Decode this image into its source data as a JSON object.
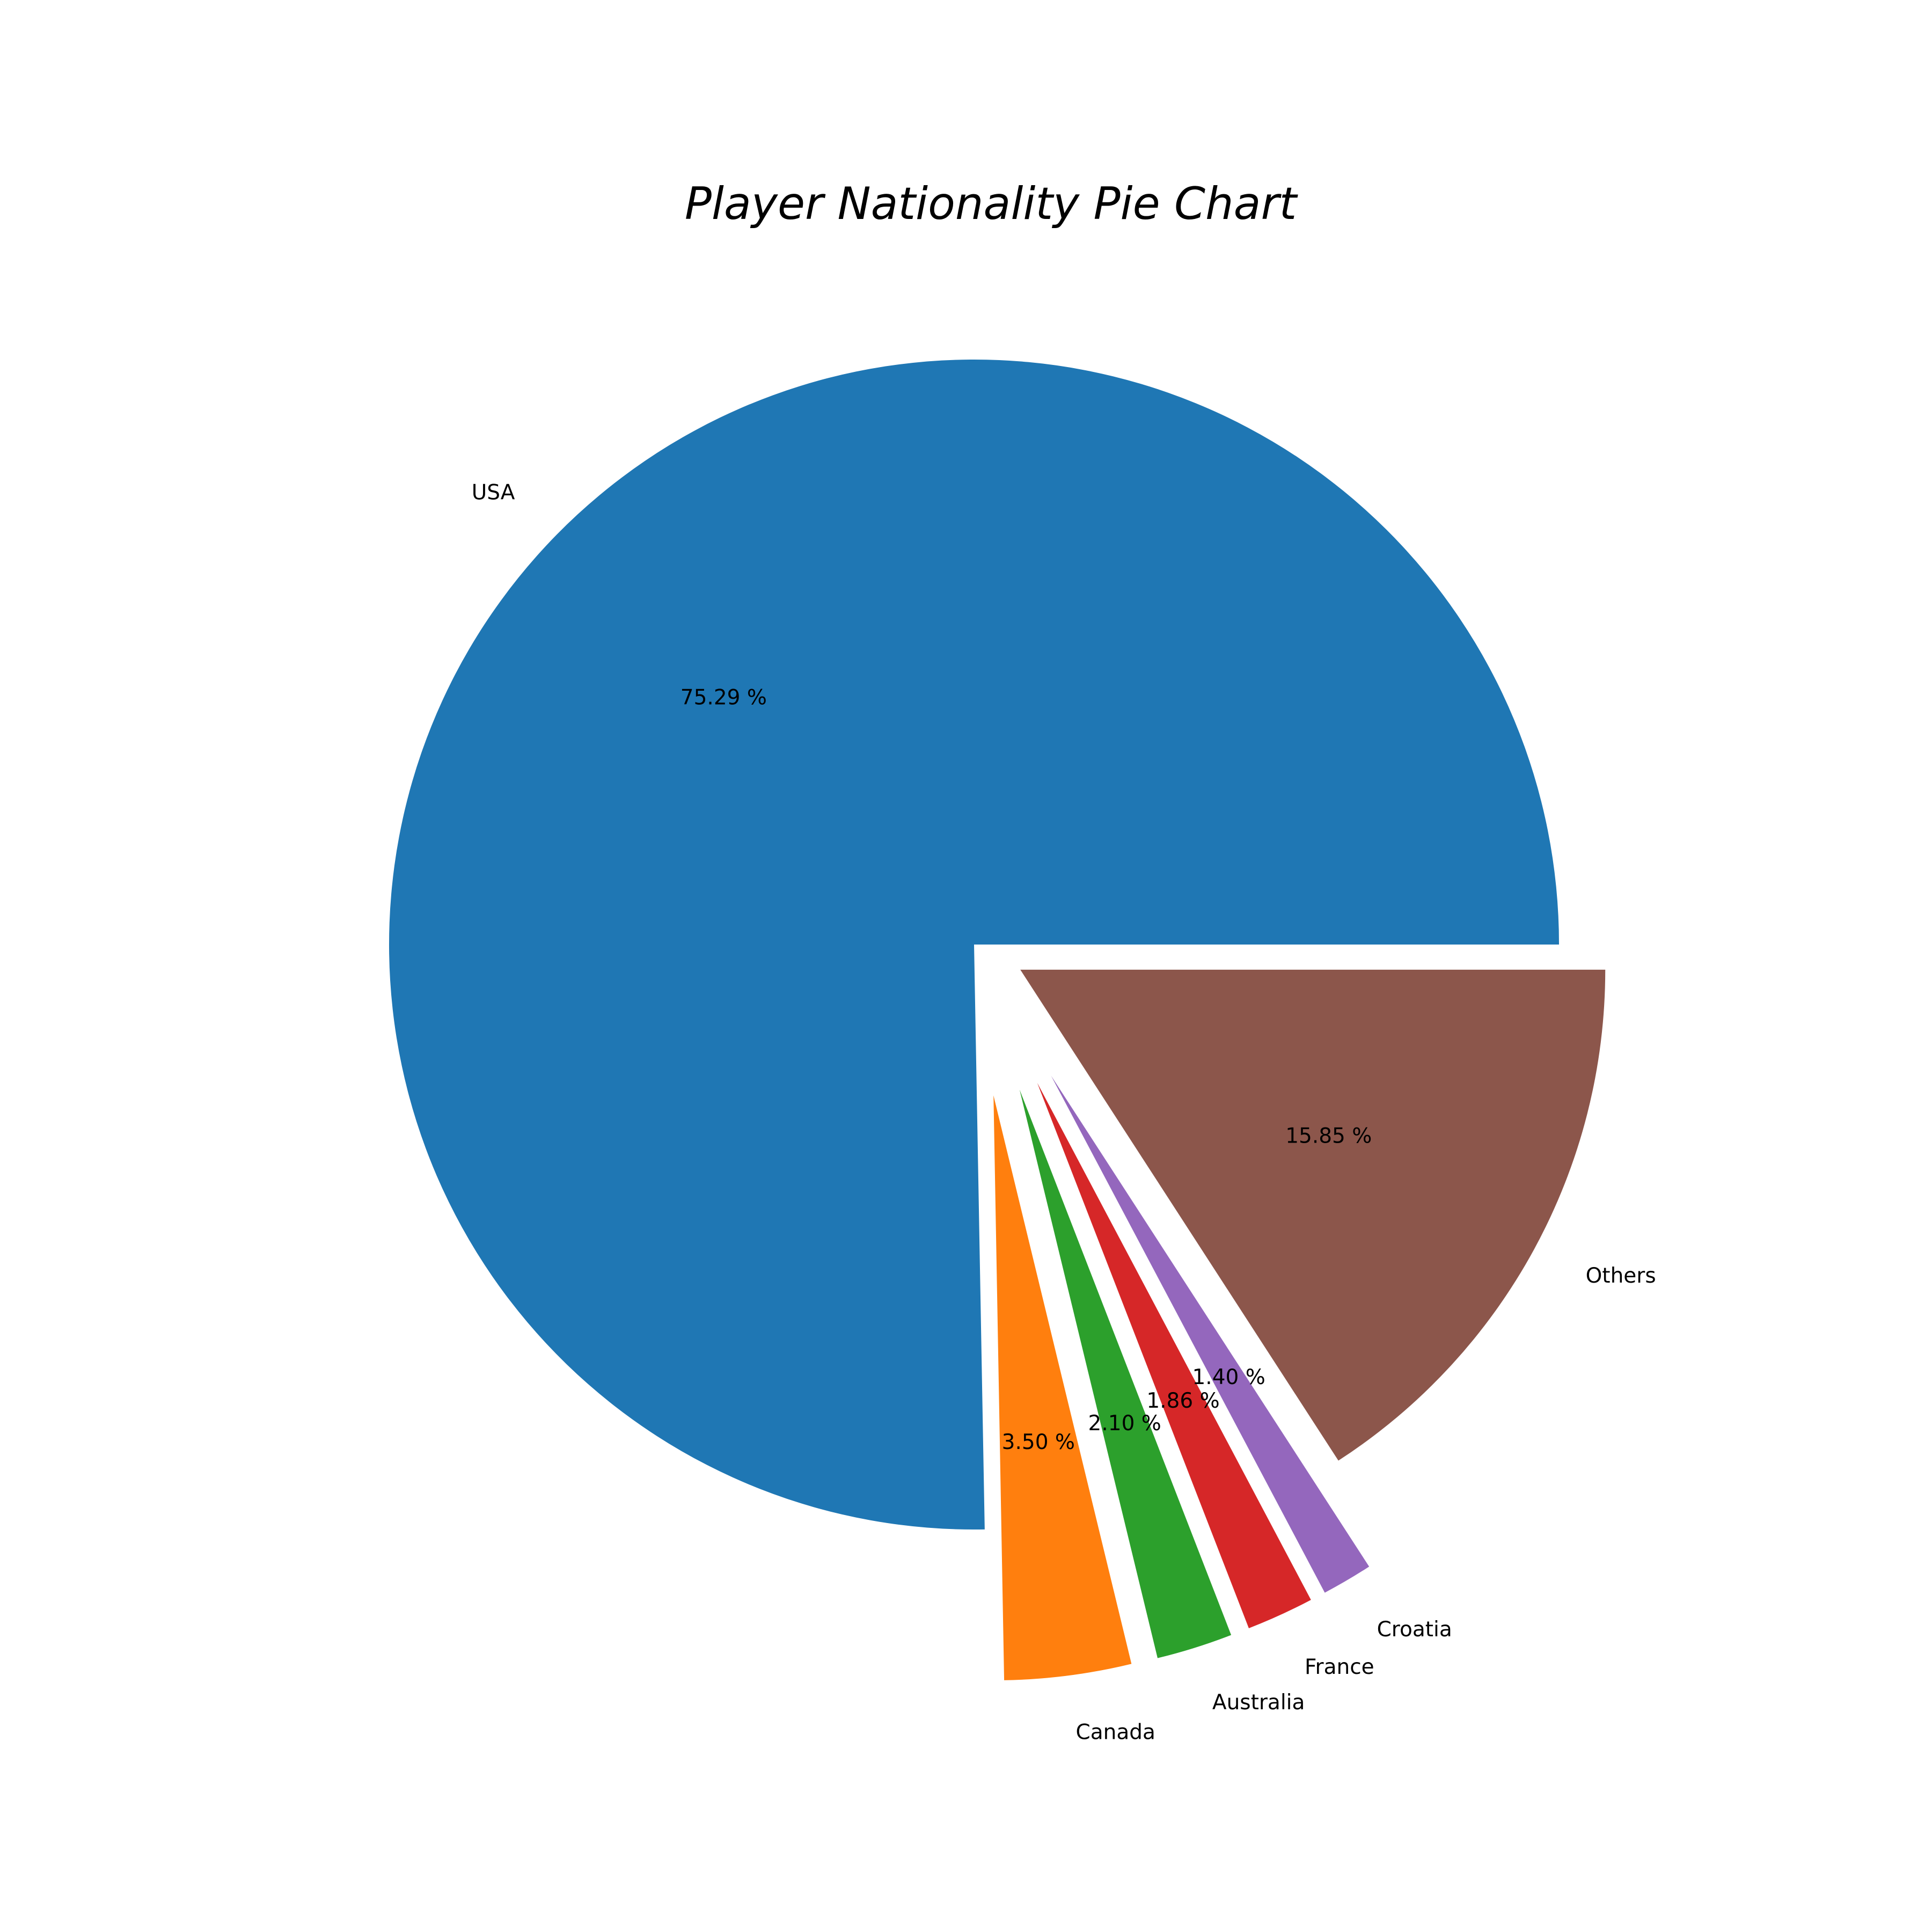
{
  "chart_data": {
    "type": "pie",
    "title": "Player Nationality Pie Chart",
    "start_angle_deg": 0,
    "counterclockwise": true,
    "slices": [
      {
        "label": "USA",
        "value": 75.29,
        "pct_text": "75.29 %",
        "color": "#1f77b4",
        "explode": 0
      },
      {
        "label": "Canada",
        "value": 3.5,
        "pct_text": "3.50 %",
        "color": "#ff7f0e",
        "explode": 0.26
      },
      {
        "label": "Australia",
        "value": 2.1,
        "pct_text": "2.10 %",
        "color": "#2ca02c",
        "explode": 0.26
      },
      {
        "label": "France",
        "value": 1.86,
        "pct_text": "1.86 %",
        "color": "#d62728",
        "explode": 0.26
      },
      {
        "label": "Croatia",
        "value": 1.4,
        "pct_text": "1.40 %",
        "color": "#9467bd",
        "explode": 0.26
      },
      {
        "label": "Others",
        "value": 15.85,
        "pct_text": "15.85 %",
        "color": "#8c564b",
        "explode": 0.09
      }
    ]
  }
}
